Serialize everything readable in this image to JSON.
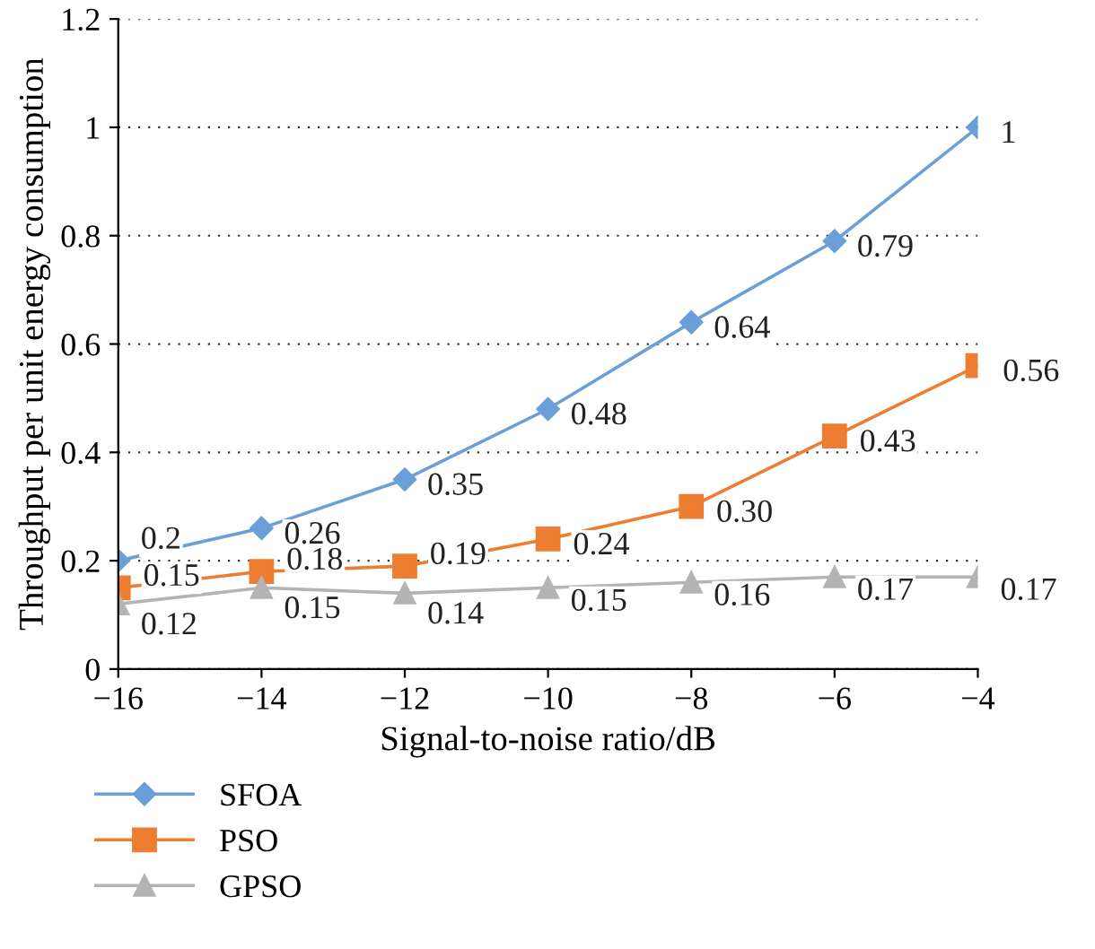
{
  "chart_data": {
    "type": "line",
    "xlabel": "Signal-to-noise ratio/dB",
    "ylabel": "Throughput per unit energy consumption",
    "x": [
      -16,
      -14,
      -12,
      -10,
      -8,
      -6,
      -4
    ],
    "xlim": [
      -16,
      -4
    ],
    "xticks": [
      {
        "value": -16,
        "label": "−16"
      },
      {
        "value": -14,
        "label": "−14"
      },
      {
        "value": -12,
        "label": "−12"
      },
      {
        "value": -10,
        "label": "−10"
      },
      {
        "value": -8,
        "label": "−8"
      },
      {
        "value": -6,
        "label": "−6"
      },
      {
        "value": -4,
        "label": "−4"
      }
    ],
    "ylim": [
      0,
      1.2
    ],
    "yticks": [
      0,
      0.2,
      0.4,
      0.6,
      0.8,
      1,
      1.2
    ],
    "grid": "y",
    "legend": "bottom",
    "series": [
      {
        "name": "SFOA",
        "color": "#6a9fd8",
        "marker": "diamond",
        "values": [
          0.2,
          0.26,
          0.35,
          0.48,
          0.64,
          0.79,
          1
        ],
        "value_labels": [
          "0.2",
          "0.26",
          "0.35",
          "0.48",
          "0.64",
          "0.79",
          "1"
        ]
      },
      {
        "name": "PSO",
        "color": "#ed7d31",
        "marker": "square",
        "values": [
          0.15,
          0.18,
          0.19,
          0.24,
          0.3,
          0.43,
          0.56
        ],
        "value_labels": [
          "0.15",
          "0.18",
          "0.19",
          "0.24",
          "0.30",
          "0.43",
          "0.56"
        ]
      },
      {
        "name": "GPSO",
        "color": "#b4b4b4",
        "marker": "triangle",
        "values": [
          0.12,
          0.15,
          0.14,
          0.15,
          0.16,
          0.17,
          0.17
        ],
        "value_labels": [
          "0.12",
          "0.15",
          "0.14",
          "0.15",
          "0.16",
          "0.17",
          "0.17"
        ]
      }
    ]
  }
}
